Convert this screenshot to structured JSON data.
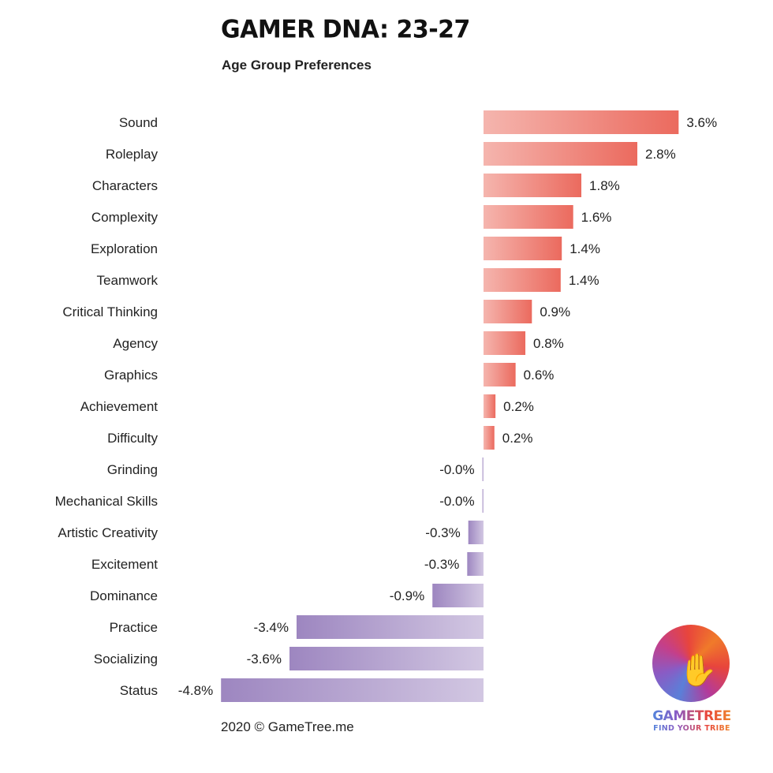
{
  "header": {
    "title": "GAMER DNA: 23-27",
    "subtitle": "Age Group Preferences"
  },
  "footer": {
    "copyright": "2020 © GameTree.me"
  },
  "logo": {
    "name": "GAMETREE",
    "tagline": "FIND YOUR TRIBE",
    "icon": "hand-tree-icon"
  },
  "colors": {
    "positive_start": "#f5b5ae",
    "positive_end": "#eb6a5e",
    "negative_start": "#9d86c0",
    "negative_end": "#d2c7e2"
  },
  "chart_data": {
    "type": "bar",
    "orientation": "horizontal",
    "title": "GAMER DNA: 23-27",
    "subtitle": "Age Group Preferences",
    "xlabel": "",
    "ylabel": "",
    "xlim": [
      -4.8,
      3.6
    ],
    "grid": false,
    "legend": "none",
    "categories": [
      "Sound",
      "Roleplay",
      "Characters",
      "Complexity",
      "Exploration",
      "Teamwork",
      "Critical Thinking",
      "Agency",
      "Graphics",
      "Achievement",
      "Difficulty",
      "Grinding",
      "Mechanical Skills",
      "Artistic Creativity",
      "Excitement",
      "Dominance",
      "Practice",
      "Socializing",
      "Status"
    ],
    "values": [
      3.59,
      2.83,
      1.8,
      1.65,
      1.44,
      1.42,
      0.89,
      0.77,
      0.59,
      0.22,
      0.2,
      -0.02,
      -0.02,
      -0.28,
      -0.3,
      -0.94,
      -3.44,
      -3.57,
      -4.83
    ],
    "labels": [
      "3.6%",
      "2.8%",
      "1.8%",
      "1.6%",
      "1.4%",
      "1.4%",
      "0.9%",
      "0.8%",
      "0.6%",
      "0.2%",
      "0.2%",
      "-0.0%",
      "-0.0%",
      "-0.3%",
      "-0.3%",
      "-0.9%",
      "-3.4%",
      "-3.6%",
      "-4.8%"
    ]
  }
}
